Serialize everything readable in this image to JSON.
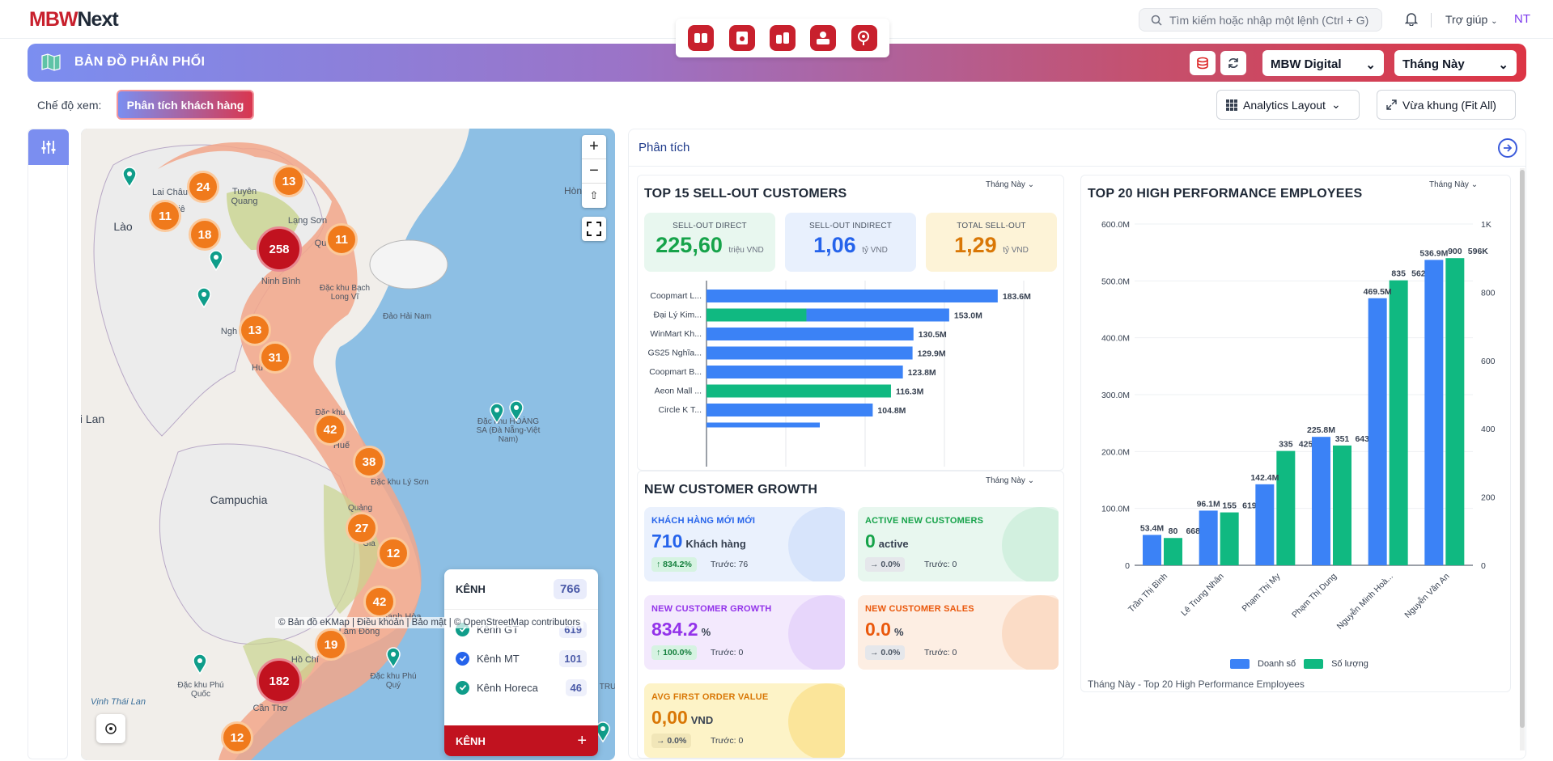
{
  "topbar": {
    "logo_m": "MBW",
    "logo_n": "Next",
    "search_placeholder": "Tìm kiếm hoặc nhập một lệnh (Ctrl + G)",
    "help": "Trợ giúp",
    "user": "NT"
  },
  "banner": {
    "title": "BẢN ĐỒ PHÂN PHỐI",
    "company": "MBW Digital",
    "period": "Tháng Này"
  },
  "view": {
    "mode_label": "Chế độ xem:",
    "mode_value": "Phân tích khách hàng",
    "layout_btn": "Analytics Layout",
    "fit_btn": "Vừa khung (Fit All)"
  },
  "map": {
    "labels": [
      {
        "t": "Lào",
        "c": true
      },
      {
        "t": "Campuchia",
        "c": true
      },
      {
        "t": "i Lan",
        "c": true
      },
      {
        "t": "Hòn",
        "c": false
      },
      {
        "t": "Tuyên Quang",
        "c": false
      },
      {
        "t": "Lai Châu",
        "c": false
      },
      {
        "t": "Điện Biê",
        "c": false
      },
      {
        "t": "Lạng Sơn",
        "c": false
      },
      {
        "t": "Ninh Bình",
        "c": false
      },
      {
        "t": "Qu",
        "c": false
      },
      {
        "t": "Đặc khu Bạch Long Vĩ",
        "c": false
      },
      {
        "t": "Đảo Hải Nam",
        "c": false
      },
      {
        "t": "Ngh",
        "c": false
      },
      {
        "t": "Hu",
        "c": false
      },
      {
        "t": "Đặc khu",
        "c": false
      },
      {
        "t": "Huế",
        "c": false
      },
      {
        "t": "Đặc khu HOÀNG SA (Đà Nẵng-Việt Nam)",
        "c": false
      },
      {
        "t": "Đặc khu Lý Sơn",
        "c": false
      },
      {
        "t": "Quảng",
        "c": false
      },
      {
        "t": "Gia",
        "c": false
      },
      {
        "t": "Khánh Hòa",
        "c": false
      },
      {
        "t": "Lâm Đồng",
        "c": false
      },
      {
        "t": "Hồ Chí",
        "c": false
      },
      {
        "t": "Đặc khu Phú Quốc",
        "c": false
      },
      {
        "t": "Đặc khu Phú Quý",
        "c": false
      },
      {
        "t": "Vịnh Thái Lan",
        "c": false
      },
      {
        "t": "Cần Thơ",
        "c": false
      },
      {
        "t": "TRU",
        "c": false
      }
    ],
    "clusters": [
      {
        "n": "24",
        "big": false
      },
      {
        "n": "13",
        "big": false
      },
      {
        "n": "11",
        "big": false
      },
      {
        "n": "18",
        "big": false
      },
      {
        "n": "258",
        "big": true
      },
      {
        "n": "11",
        "big": false
      },
      {
        "n": "13",
        "big": false
      },
      {
        "n": "31",
        "big": false
      },
      {
        "n": "42",
        "big": false
      },
      {
        "n": "38",
        "big": false
      },
      {
        "n": "27",
        "big": false
      },
      {
        "n": "12",
        "big": false
      },
      {
        "n": "42",
        "big": false
      },
      {
        "n": "19",
        "big": false
      },
      {
        "n": "182",
        "big": true
      },
      {
        "n": "12",
        "big": false
      }
    ],
    "attribution": "© Bản đồ eKMap | Điều khoản | Bảo mật | © OpenStreetMap contributors",
    "legend": {
      "title": "KÊNH",
      "total": "766",
      "items": [
        {
          "label": "Kênh GT",
          "value": "619",
          "color": "#0f9d8a"
        },
        {
          "label": "Kênh MT",
          "value": "101",
          "color": "#2563eb"
        },
        {
          "label": "Kênh Horeca",
          "value": "46",
          "color": "#0f9d8a"
        }
      ],
      "footer": "KÊNH"
    }
  },
  "analysis": {
    "title": "Phân tích",
    "period": "Tháng Này",
    "top15": {
      "title": "TOP 15 SELL-OUT CUSTOMERS",
      "kpis": [
        {
          "label": "SELL-OUT DIRECT",
          "value": "225,60",
          "unit": "triệu VND",
          "color": "#16a34a",
          "bg": "#e8f7ef"
        },
        {
          "label": "SELL-OUT INDIRECT",
          "value": "1,06",
          "unit": "tỷ VND",
          "color": "#2563eb",
          "bg": "#e8f0fd"
        },
        {
          "label": "TOTAL SELL-OUT",
          "value": "1,29",
          "unit": "tỷ VND",
          "color": "#d97706",
          "bg": "#fdf3d7"
        }
      ]
    },
    "top20": {
      "title": "TOP 20 HIGH PERFORMANCE EMPLOYEES",
      "legend_a": "Doanh số",
      "legend_b": "Số lượng",
      "caption": "Tháng Này - Top 20 High Performance Employees"
    },
    "growth": {
      "title": "NEW CUSTOMER GROWTH",
      "cards": [
        {
          "label": "KHÁCH HÀNG MỚI MỚI",
          "value": "710",
          "unit": "Khách hàng",
          "pct": "↑ 834.2%",
          "prev": "Trước: 76",
          "fg": "#2563eb",
          "bg": "#eaf1fd",
          "circ": "#d7e4fb",
          "pbg": "#d6f3e2",
          "pfg": "#15803d"
        },
        {
          "label": "ACTIVE NEW CUSTOMERS",
          "value": "0",
          "unit": "active",
          "pct": "→ 0.0%",
          "prev": "Trước: 0",
          "fg": "#16a34a",
          "bg": "#e8f7ef",
          "circ": "#d2f0df",
          "pbg": "#e5e7eb",
          "pfg": "#4b5563"
        },
        {
          "label": "NEW CUSTOMER GROWTH",
          "value": "834.2",
          "unit": "%",
          "pct": "↑ 100.0%",
          "prev": "Trước: 0",
          "fg": "#9333ea",
          "bg": "#f3e9fd",
          "circ": "#e7d6fb",
          "pbg": "#d6f3e2",
          "pfg": "#15803d"
        },
        {
          "label": "NEW CUSTOMER SALES",
          "value": "0.0",
          "unit": "%",
          "pct": "→ 0.0%",
          "prev": "Trước: 0",
          "fg": "#ea580c",
          "bg": "#fdeee3",
          "circ": "#fbdcc6",
          "pbg": "#e5e7eb",
          "pfg": "#4b5563"
        },
        {
          "label": "AVG FIRST ORDER VALUE",
          "value": "0,00",
          "unit": "VND",
          "pct": "→ 0.0%",
          "prev": "Trước: 0",
          "fg": "#d97706",
          "bg": "#fdf3c7",
          "circ": "#fbe59a",
          "pbg": "#f1e6b8",
          "pfg": "#4b5563"
        }
      ]
    }
  },
  "chart_data": [
    {
      "type": "bar",
      "orientation": "horizontal",
      "categories": [
        "Coopmart L...",
        "Đại Lý Kim...",
        "WinMart Kh...",
        "GS25 Nghĩa...",
        "Coopmart B...",
        "Aeon Mall ...",
        "Circle K T..."
      ],
      "labels": [
        "183.6M",
        "153.0M",
        "130.5M",
        "129.9M",
        "123.8M",
        "116.3M",
        "104.8M"
      ],
      "series": [
        {
          "values": [
            0,
            63,
            0,
            0,
            0,
            116.3,
            0
          ],
          "color": "#10b981"
        },
        {
          "values": [
            183.6,
            90,
            130.5,
            129.9,
            123.8,
            0,
            104.8
          ],
          "color": "#3b82f6"
        }
      ],
      "xlim": [
        0,
        200
      ]
    },
    {
      "type": "bar",
      "categories": [
        "Trần Thị Bình",
        "Lê Trung Nhân",
        "Phạm Thị My",
        "Phạm Thị Dung",
        "Nguyễn Minh Hoà...",
        "Nguyễn Văn An"
      ],
      "series": [
        {
          "name": "Doanh số",
          "values": [
            53.4,
            96.1,
            142.4,
            225.8,
            469.5,
            536.9
          ],
          "labels": [
            "53.4M",
            "96.1M",
            "142.4M",
            "225.8M",
            "469.5M",
            "536.9M"
          ],
          "color": "#3b82f6",
          "axis": "left"
        },
        {
          "name": "Số lượng",
          "values": [
            80,
            155,
            335,
            351,
            835,
            900
          ],
          "labels": [
            "80",
            "155",
            "335",
            "351",
            "835",
            "900"
          ],
          "color": "#10b981",
          "axis": "right"
        }
      ],
      "extra_labels": [
        "668K",
        "619K",
        "425K",
        "643K",
        "562K",
        "596K"
      ],
      "ylim_left": [
        0,
        600
      ],
      "yticks_left": [
        "0",
        "100.0M",
        "200.0M",
        "300.0M",
        "400.0M",
        "500.0M",
        "600.0M"
      ],
      "ylim_right": [
        0,
        1000
      ],
      "yticks_right": [
        "0",
        "200",
        "400",
        "600",
        "800",
        "1K"
      ]
    }
  ]
}
